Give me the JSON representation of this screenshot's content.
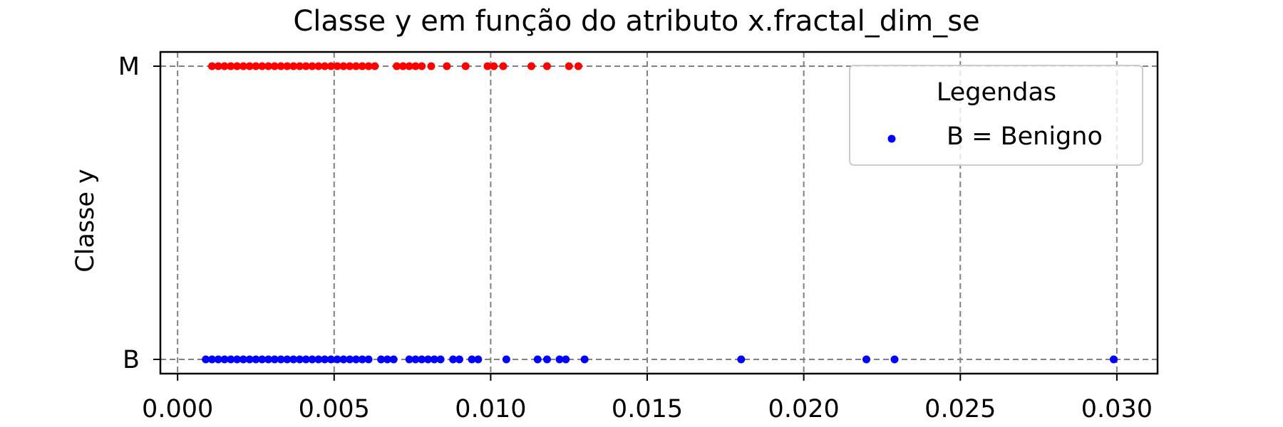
{
  "chart_data": {
    "type": "scatter",
    "title": "Classe y em função do atributo x.fractal_dim_se",
    "xlabel": "",
    "ylabel": "Classe y",
    "xlim": [
      -0.00055,
      0.0313
    ],
    "x_ticks": [
      {
        "value": 0.0,
        "label": "0.000"
      },
      {
        "value": 0.005,
        "label": "0.005"
      },
      {
        "value": 0.01,
        "label": "0.010"
      },
      {
        "value": 0.015,
        "label": "0.015"
      },
      {
        "value": 0.02,
        "label": "0.020"
      },
      {
        "value": 0.025,
        "label": "0.025"
      },
      {
        "value": 0.03,
        "label": "0.030"
      }
    ],
    "y_categories": [
      "B",
      "M"
    ],
    "grid": true,
    "legend": {
      "title": "Legendas",
      "placement": "upper-right",
      "entries": [
        {
          "label": "B = Benigno",
          "color": "#0000ff"
        }
      ]
    },
    "series": [
      {
        "color": "#ff0000",
        "category": "M",
        "x": [
          0.0011,
          0.0013,
          0.0015,
          0.0017,
          0.0019,
          0.0021,
          0.0023,
          0.0025,
          0.0027,
          0.0029,
          0.0031,
          0.0033,
          0.0035,
          0.0037,
          0.0039,
          0.0041,
          0.0043,
          0.0045,
          0.0047,
          0.0049,
          0.0051,
          0.0053,
          0.0055,
          0.0057,
          0.0059,
          0.0061,
          0.0063,
          0.007,
          0.0072,
          0.0074,
          0.0076,
          0.0078,
          0.0081,
          0.0086,
          0.0092,
          0.0099,
          0.0101,
          0.0104,
          0.0113,
          0.0118,
          0.0125,
          0.0128
        ]
      },
      {
        "color": "#0000ff",
        "category": "B",
        "x": [
          0.0009,
          0.0011,
          0.0013,
          0.0015,
          0.0017,
          0.0019,
          0.0021,
          0.0023,
          0.0025,
          0.0027,
          0.0029,
          0.0031,
          0.0033,
          0.0035,
          0.0037,
          0.0039,
          0.0041,
          0.0043,
          0.0045,
          0.0047,
          0.0049,
          0.0051,
          0.0053,
          0.0055,
          0.0057,
          0.0059,
          0.0061,
          0.0065,
          0.0067,
          0.0069,
          0.0074,
          0.0076,
          0.0078,
          0.008,
          0.0082,
          0.0084,
          0.0088,
          0.009,
          0.0094,
          0.0096,
          0.0105,
          0.0115,
          0.0118,
          0.0122,
          0.0124,
          0.013,
          0.018,
          0.022,
          0.0229,
          0.0299
        ]
      }
    ]
  }
}
